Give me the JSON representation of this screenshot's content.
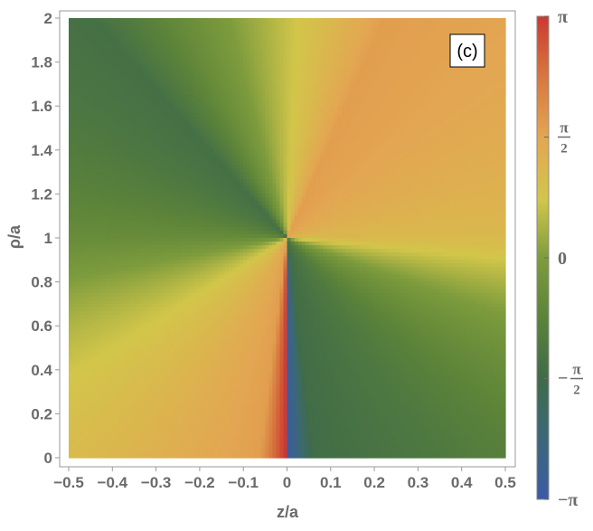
{
  "chart_data": {
    "type": "heatmap",
    "title": "",
    "panel_label": "(c)",
    "xlabel": "z/a",
    "ylabel": "ρ/a",
    "xlim": [
      -0.5,
      0.5
    ],
    "ylim": [
      0,
      2
    ],
    "x_ticks": [
      -0.5,
      -0.4,
      -0.3,
      -0.2,
      -0.1,
      0,
      0.1,
      0.2,
      0.3,
      0.4,
      0.5
    ],
    "x_tick_labels": [
      "−0.5",
      "−0.4",
      "−0.3",
      "−0.2",
      "−0.1",
      "0",
      "0.1",
      "0.2",
      "0.3",
      "0.4",
      "0.5"
    ],
    "y_ticks": [
      0,
      0.2,
      0.4,
      0.6,
      0.8,
      1,
      1.2,
      1.4,
      1.6,
      1.8,
      2
    ],
    "y_tick_labels": [
      "0",
      "0.2",
      "0.4",
      "0.6",
      "0.8",
      "1",
      "1.2",
      "1.4",
      "1.6",
      "1.8",
      "2"
    ],
    "field": "phase",
    "singularity": {
      "z": 0,
      "rho": 1
    },
    "phase_samples": [
      {
        "z": -0.4,
        "rho": 1.9,
        "phase": -1.4
      },
      {
        "z": 0.2,
        "rho": 1.9,
        "phase": 1.7
      },
      {
        "z": 0.4,
        "rho": 1.0,
        "phase": 1.1
      },
      {
        "z": 0.3,
        "rho": 0.2,
        "phase": -1.1
      },
      {
        "z": 0.05,
        "rho": 0.2,
        "phase": -1.5
      },
      {
        "z": -0.05,
        "rho": 0.2,
        "phase": 1.7
      },
      {
        "z": -0.4,
        "rho": 0.1,
        "phase": 1.1
      },
      {
        "z": -0.4,
        "rho": 1.0,
        "phase": -0.5
      }
    ],
    "colorbar": {
      "range": [
        -3.14159,
        3.14159
      ],
      "ticks": [
        {
          "value": 3.14159,
          "sign": "",
          "symbol": "π",
          "den": ""
        },
        {
          "value": 1.5708,
          "sign": "",
          "symbol": "π",
          "den": "2"
        },
        {
          "value": 0,
          "sign": "",
          "symbol": "0",
          "den": ""
        },
        {
          "value": -1.5708,
          "sign": "−",
          "symbol": "π",
          "den": "2"
        },
        {
          "value": -3.14159,
          "sign": "−",
          "symbol": "π",
          "den": ""
        }
      ],
      "colors": [
        {
          "value": -3.14159,
          "color": "#3b5ba7"
        },
        {
          "value": -2.1,
          "color": "#3c6a6a"
        },
        {
          "value": -1.5708,
          "color": "#3f6b49"
        },
        {
          "value": -0.75,
          "color": "#5d8439"
        },
        {
          "value": 0,
          "color": "#7e9c3d"
        },
        {
          "value": 0.75,
          "color": "#d2c64a"
        },
        {
          "value": 1.5708,
          "color": "#e3a652"
        },
        {
          "value": 2.4,
          "color": "#d7743e"
        },
        {
          "value": 3.14159,
          "color": "#cc3832"
        }
      ]
    },
    "grid": false,
    "legend": "right"
  }
}
